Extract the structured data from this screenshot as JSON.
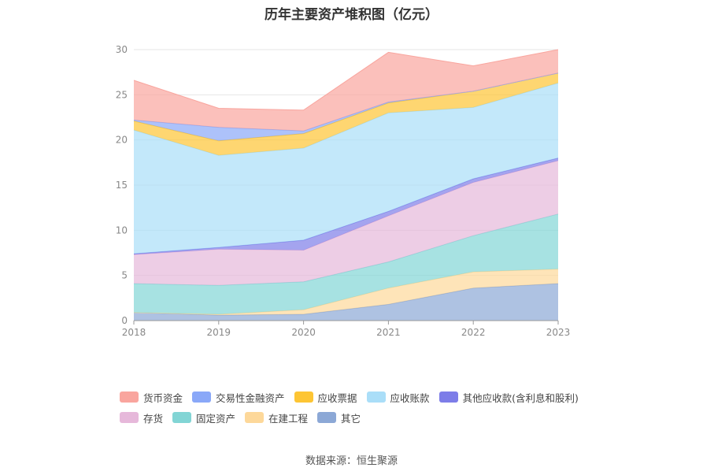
{
  "page": {
    "title": "历年主要资产堆积图（亿元）",
    "source": "数据来源：恒生聚源"
  },
  "colors": {
    "货币资金": "#f9a59e",
    "交易性金融资产": "#8aa8f8",
    "应收票据": "#fdc534",
    "应收账款": "#aadef8",
    "其他应收款(含利息和股利)": "#7d7de8",
    "存货": "#e6b8da",
    "固定资产": "#82d5d5",
    "在建工程": "#fdd89a",
    "其它": "#8ca8d6"
  },
  "chart_data": {
    "type": "area",
    "stacked": true,
    "title": "历年主要资产堆积图（亿元）",
    "xlabel": "",
    "ylabel": "",
    "x": [
      "2018",
      "2019",
      "2020",
      "2021",
      "2022",
      "2023"
    ],
    "ylim": [
      0,
      30
    ],
    "yticks": [
      0,
      5,
      10,
      15,
      20,
      25,
      30
    ],
    "grid": true,
    "legend_position": "bottom",
    "series": [
      {
        "name": "其它",
        "values": [
          0.9,
          0.6,
          0.7,
          1.8,
          3.6,
          4.1
        ]
      },
      {
        "name": "在建工程",
        "values": [
          0.0,
          0.1,
          0.5,
          1.8,
          1.8,
          1.6
        ]
      },
      {
        "name": "固定资产",
        "values": [
          3.2,
          3.2,
          3.1,
          2.9,
          4.0,
          6.1
        ]
      },
      {
        "name": "存货",
        "values": [
          3.2,
          4.0,
          3.5,
          5.1,
          5.9,
          5.9
        ]
      },
      {
        "name": "其他应收款(含利息和股利)",
        "values": [
          0.1,
          0.2,
          1.1,
          0.5,
          0.4,
          0.3
        ]
      },
      {
        "name": "应收账款",
        "values": [
          13.7,
          10.2,
          10.2,
          10.9,
          7.9,
          8.3
        ]
      },
      {
        "name": "应收票据",
        "values": [
          1.0,
          1.6,
          1.6,
          1.1,
          1.8,
          1.1
        ]
      },
      {
        "name": "交易性金融资产",
        "values": [
          0.1,
          1.5,
          0.3,
          0.1,
          0.0,
          0.0
        ]
      },
      {
        "name": "货币资金",
        "values": [
          4.4,
          2.1,
          2.3,
          5.5,
          2.8,
          2.6
        ]
      }
    ]
  },
  "legend": [
    {
      "label": "货币资金"
    },
    {
      "label": "交易性金融资产"
    },
    {
      "label": "应收票据"
    },
    {
      "label": "应收账款"
    },
    {
      "label": "其他应收款(含利息和股利)"
    },
    {
      "label": "存货"
    },
    {
      "label": "固定资产"
    },
    {
      "label": "在建工程"
    },
    {
      "label": "其它"
    }
  ]
}
